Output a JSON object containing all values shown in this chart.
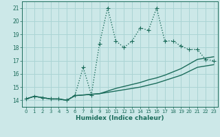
{
  "xlabel": "Humidex (Indice chaleur)",
  "bg_color": "#cce8e8",
  "grid_color": "#aad4d4",
  "line_color": "#1a6b5a",
  "xlim": [
    -0.5,
    23.5
  ],
  "ylim": [
    13.5,
    21.5
  ],
  "xticks": [
    0,
    1,
    2,
    3,
    4,
    5,
    6,
    7,
    8,
    9,
    10,
    11,
    12,
    13,
    14,
    15,
    16,
    17,
    18,
    19,
    20,
    21,
    22,
    23
  ],
  "yticks": [
    14,
    15,
    16,
    17,
    18,
    19,
    20,
    21
  ],
  "series1_x": [
    0,
    1,
    2,
    3,
    4,
    5,
    6,
    7,
    8,
    9,
    10,
    11,
    12,
    13,
    14,
    15,
    16,
    17,
    18,
    19,
    20,
    21,
    22,
    23
  ],
  "series1_y": [
    14.1,
    14.3,
    14.2,
    14.1,
    14.1,
    14.0,
    14.4,
    16.5,
    14.4,
    18.3,
    21.0,
    18.5,
    18.0,
    18.5,
    19.5,
    19.3,
    21.0,
    18.5,
    18.5,
    18.1,
    17.85,
    17.85,
    17.1,
    17.0
  ],
  "series2_x": [
    0,
    1,
    2,
    3,
    4,
    5,
    6,
    7,
    8,
    9,
    10,
    11,
    12,
    13,
    14,
    15,
    16,
    17,
    18,
    19,
    20,
    21,
    22,
    23
  ],
  "series2_y": [
    14.1,
    14.3,
    14.2,
    14.1,
    14.1,
    14.0,
    14.35,
    14.4,
    14.45,
    14.5,
    14.6,
    14.7,
    14.8,
    14.9,
    15.0,
    15.15,
    15.3,
    15.5,
    15.7,
    15.9,
    16.2,
    16.5,
    16.6,
    16.7
  ],
  "series3_x": [
    0,
    1,
    2,
    3,
    4,
    5,
    6,
    7,
    8,
    9,
    10,
    11,
    12,
    13,
    14,
    15,
    16,
    17,
    18,
    19,
    20,
    21,
    22,
    23
  ],
  "series3_y": [
    14.1,
    14.3,
    14.2,
    14.1,
    14.1,
    14.0,
    14.35,
    14.4,
    14.45,
    14.5,
    14.7,
    14.9,
    15.05,
    15.2,
    15.35,
    15.55,
    15.7,
    15.9,
    16.15,
    16.4,
    16.75,
    17.1,
    17.2,
    17.3
  ],
  "marker": "+",
  "markersize": 4,
  "linewidth": 1.0
}
